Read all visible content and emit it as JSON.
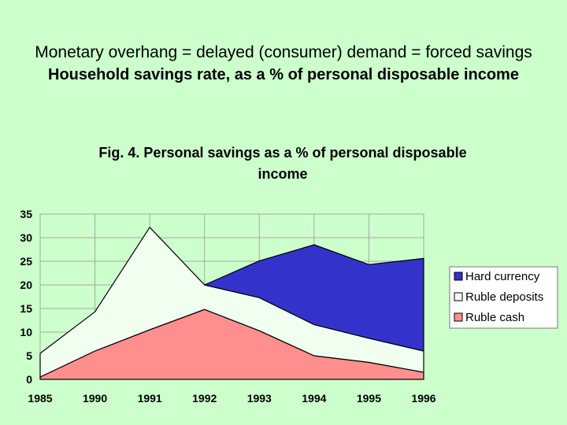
{
  "slide": {
    "title_line1": "Monetary overhang = delayed (consumer) demand = forced savings",
    "title_line2": "Household savings rate, as a % of personal disposable income"
  },
  "chart_data": {
    "type": "area",
    "stacked": true,
    "title_lines": [
      "Fig. 4. Personal savings as a % of personal disposable",
      "income"
    ],
    "x": [
      "1985",
      "1990",
      "1991",
      "1992",
      "1993",
      "1994",
      "1995",
      "1996"
    ],
    "series": [
      {
        "name": "Ruble cash",
        "color": "#ff8f8f",
        "values": [
          0.5,
          6.0,
          10.5,
          14.8,
          10.3,
          5.0,
          3.6,
          1.5
        ]
      },
      {
        "name": "Ruble deposits",
        "color": "#f0fff0",
        "values": [
          5.0,
          8.3,
          21.7,
          5.2,
          7.0,
          6.6,
          5.1,
          4.5
        ]
      },
      {
        "name": "Hard currency",
        "color": "#3333cc",
        "values": [
          0,
          0,
          0,
          0,
          7.8,
          16.9,
          15.6,
          19.6
        ]
      }
    ],
    "ylim": [
      0,
      35
    ],
    "yticks": [
      0,
      5,
      10,
      15,
      20,
      25,
      30,
      35
    ],
    "grid": true,
    "legend": "right",
    "legend_order": [
      "Hard currency",
      "Ruble deposits",
      "Ruble cash"
    ]
  }
}
